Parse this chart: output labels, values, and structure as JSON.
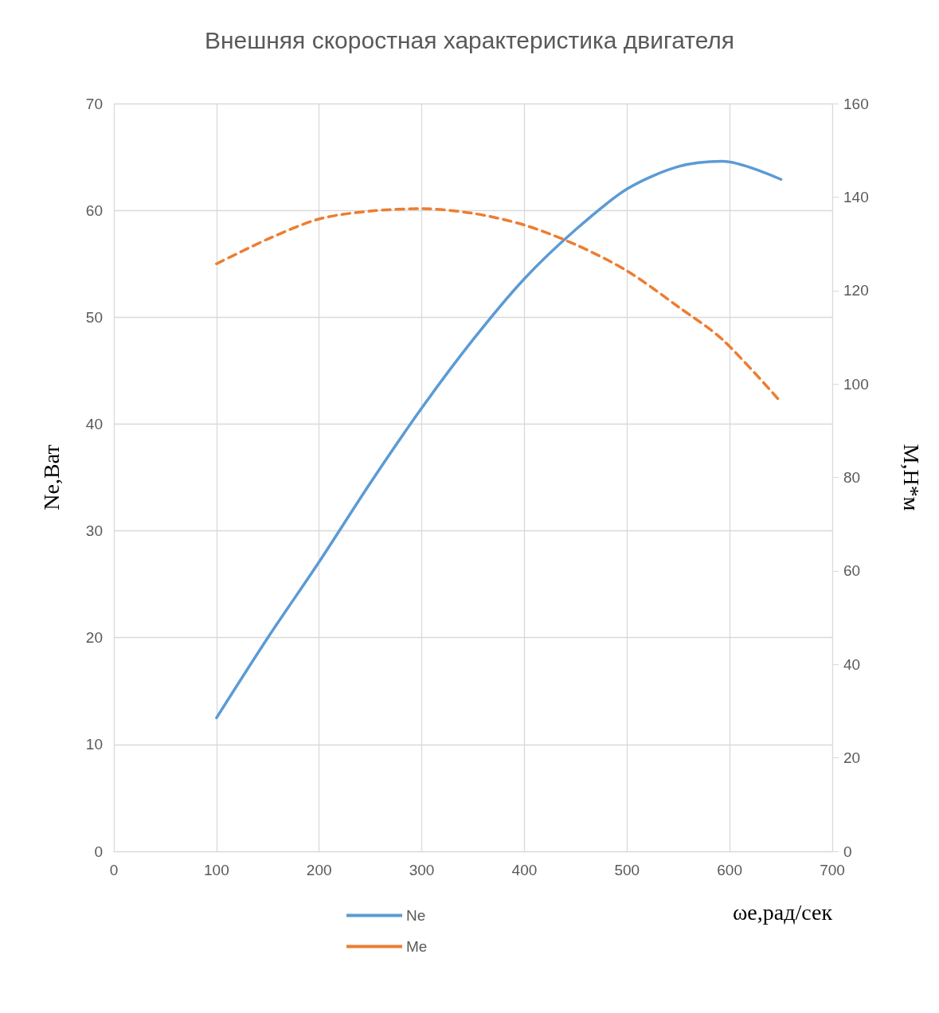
{
  "chart_data": {
    "type": "line",
    "title": "Внешняя скоростная характеристика двигателя",
    "xlabel": "ωe,рад/сек",
    "ylabel": "Ne,Ват",
    "y2label": "M,Н*м",
    "x": [
      100,
      150,
      200,
      250,
      300,
      350,
      400,
      450,
      500,
      550,
      593,
      650
    ],
    "series": [
      {
        "name": "Ne",
        "color": "#5b9bd5",
        "line_style": "solid",
        "values": [
          12.5,
          20,
          27.1,
          34.5,
          41.5,
          47.9,
          53.6,
          58.2,
          62.0,
          64.1,
          64.6,
          62.9
        ]
      },
      {
        "name": "Me",
        "color": "#ed7d31",
        "line_style": "dashed",
        "axis": "y2",
        "values": [
          125.7,
          131,
          135.3,
          137,
          137.5,
          136.5,
          134,
          129.8,
          124.2,
          116.5,
          109.5,
          96.1
        ]
      }
    ],
    "xlim": [
      0,
      700
    ],
    "xticks": [
      0,
      100,
      200,
      300,
      400,
      500,
      600,
      700
    ],
    "ylim": [
      0,
      70
    ],
    "yticks": [
      0,
      10,
      20,
      30,
      40,
      50,
      60,
      70
    ],
    "y2lim": [
      0,
      160
    ],
    "y2ticks": [
      0,
      20,
      40,
      60,
      80,
      100,
      120,
      140,
      160
    ],
    "grid": true,
    "legend": "bottom",
    "marker": "none"
  }
}
